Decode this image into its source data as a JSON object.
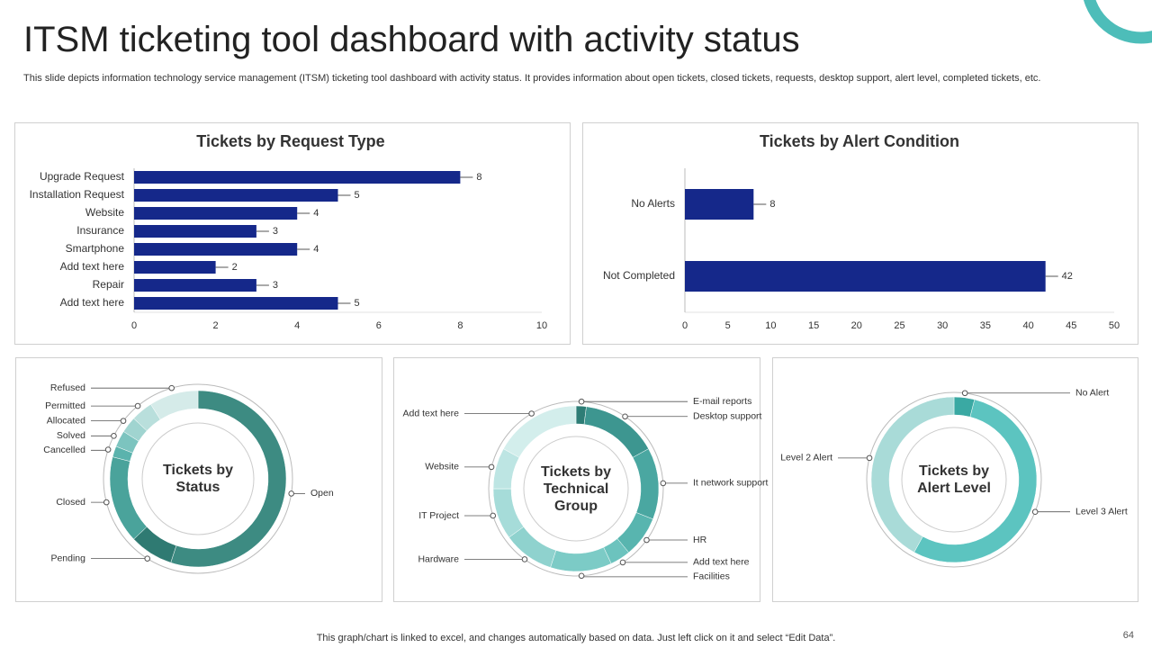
{
  "header": {
    "title": "ITSM ticketing tool dashboard with activity status",
    "subtitle": "This slide depicts information technology service management (ITSM) ticketing tool dashboard with activity status. It provides information about open tickets, closed tickets, requests, desktop support, alert level, completed tickets, etc."
  },
  "chart_data": [
    {
      "type": "bar",
      "title": "Tickets by Request Type",
      "categories": [
        "Upgrade Request",
        "Installation Request",
        "Website",
        "Insurance",
        "Smartphone",
        "Add text here",
        "Repair",
        "Add text here"
      ],
      "values": [
        8,
        5,
        4,
        3,
        4,
        2,
        3,
        5
      ],
      "color": "#15288a",
      "xlim": [
        0,
        10
      ],
      "xticks": [
        0,
        2,
        4,
        6,
        8,
        10
      ]
    },
    {
      "type": "bar",
      "title": "Tickets by Alert Condition",
      "categories": [
        "No Alerts",
        "Not Completed"
      ],
      "values": [
        8,
        42
      ],
      "color": "#15288a",
      "xlim": [
        0,
        50
      ],
      "xticks": [
        0,
        5,
        10,
        15,
        20,
        25,
        30,
        35,
        40,
        45,
        50
      ]
    },
    {
      "type": "donut",
      "title": "Tickets by Status",
      "categories": [
        "Open",
        "Pending",
        "Closed",
        "Cancelled",
        "Solved",
        "Allocated",
        "Permitted",
        "Refused"
      ],
      "values": [
        55,
        8,
        16,
        2,
        3,
        3,
        4,
        9
      ],
      "colors": [
        "#3d8b82",
        "#2f7a72",
        "#4aa39b",
        "#5bb3ad",
        "#7cc4bf",
        "#a0d4d0",
        "#b9dfdc",
        "#d5ebe9"
      ]
    },
    {
      "type": "donut",
      "title": "Tickets by Technical Group",
      "categories": [
        "E-mail reports",
        "Desktop support",
        "It network support",
        "HR",
        "Add text here",
        "Facilities",
        "Hardware",
        "IT Project",
        "Website",
        "Add text here"
      ],
      "values": [
        2,
        15,
        14,
        8,
        4,
        12,
        10,
        10,
        8,
        17
      ],
      "colors": [
        "#2e7d76",
        "#3d9690",
        "#4aa7a1",
        "#58b5af",
        "#6cc3be",
        "#7ccbc6",
        "#8fd2ce",
        "#a6dcd9",
        "#bde5e3",
        "#d3eeec"
      ]
    },
    {
      "type": "donut",
      "title": "Tickets by Alert Level",
      "categories": [
        "No Alert",
        "Level 3 Alert",
        "Level 2 Alert"
      ],
      "values": [
        4,
        54,
        42
      ],
      "colors": [
        "#3aa9a3",
        "#5cc4c0",
        "#a9dbd8"
      ]
    }
  ],
  "footer": {
    "note": "This graph/chart is linked to excel, and changes automatically based on data. Just left click on it and select “Edit Data”.",
    "page_number": "64"
  }
}
